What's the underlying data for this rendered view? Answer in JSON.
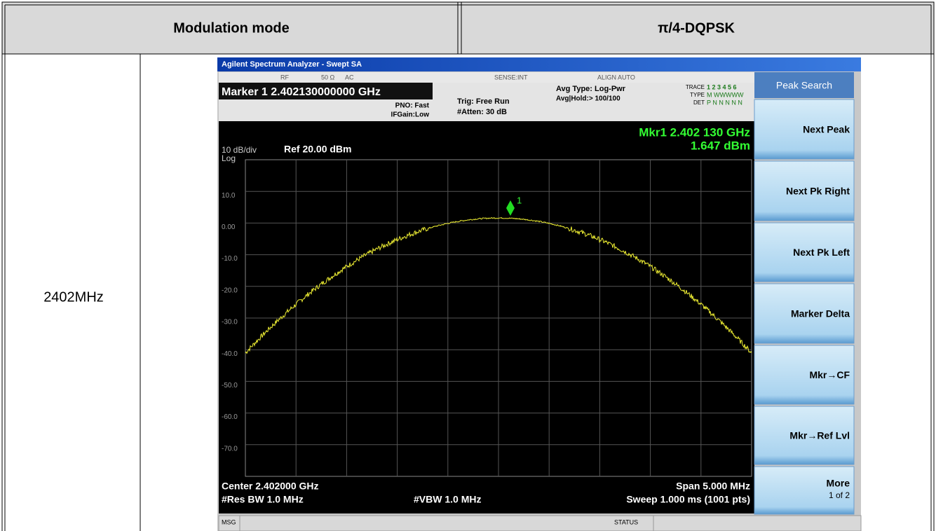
{
  "header": {
    "cells": [
      "Modulation mode",
      "π/4-DQPSK"
    ]
  },
  "row": {
    "label": "2402MHz"
  },
  "analyzer": {
    "title": "Agilent Spectrum Analyzer - Swept SA",
    "status_bar": [
      "RF",
      "50 Ω",
      "AC",
      "SENSE:INT",
      "ALIGN AUTO"
    ],
    "marker": "Marker 1 2.402130000000 GHz",
    "settings": [
      "PNO: Fast",
      "IFGain:Low",
      "Trig: Free Run",
      "#Atten: 30 dB",
      "Avg Type: Log-Pwr",
      "Avg|Hold:> 100/100"
    ],
    "trace_info": [
      "TRACE",
      "1 2 3 4 5 6",
      "TYPE",
      "M WWWWW",
      "DET",
      "P N N N N N"
    ],
    "scale": "10 dB/div",
    "scale_type": "Log",
    "ref": "Ref 20.00 dBm",
    "marker_readout": [
      "Mkr1 2.402 130 GHz",
      "1.647 dBm"
    ],
    "marker_label": "1",
    "y_labels": [
      "10.0",
      "0.00",
      "-10.0",
      "-20.0",
      "-30.0",
      "-40.0",
      "-50.0",
      "-60.0",
      "-70.0"
    ],
    "footer": {
      "center": "Center 2.402000 GHz",
      "res_bw": "#Res BW 1.0 MHz",
      "vbw": "#VBW 1.0 MHz",
      "span": "Span 5.000 MHz",
      "sweep": "Sweep  1.000 ms (1001 pts)"
    },
    "menu_title": "Peak Search",
    "softkeys": [
      "Next Peak",
      "Next Pk Right",
      "Next Pk Left",
      "Marker Delta",
      "Mkr→CF",
      "Mkr→Ref Lvl",
      "More"
    ],
    "more_page": "1 of 2",
    "msg": "MSG",
    "status": "STATUS"
  }
}
